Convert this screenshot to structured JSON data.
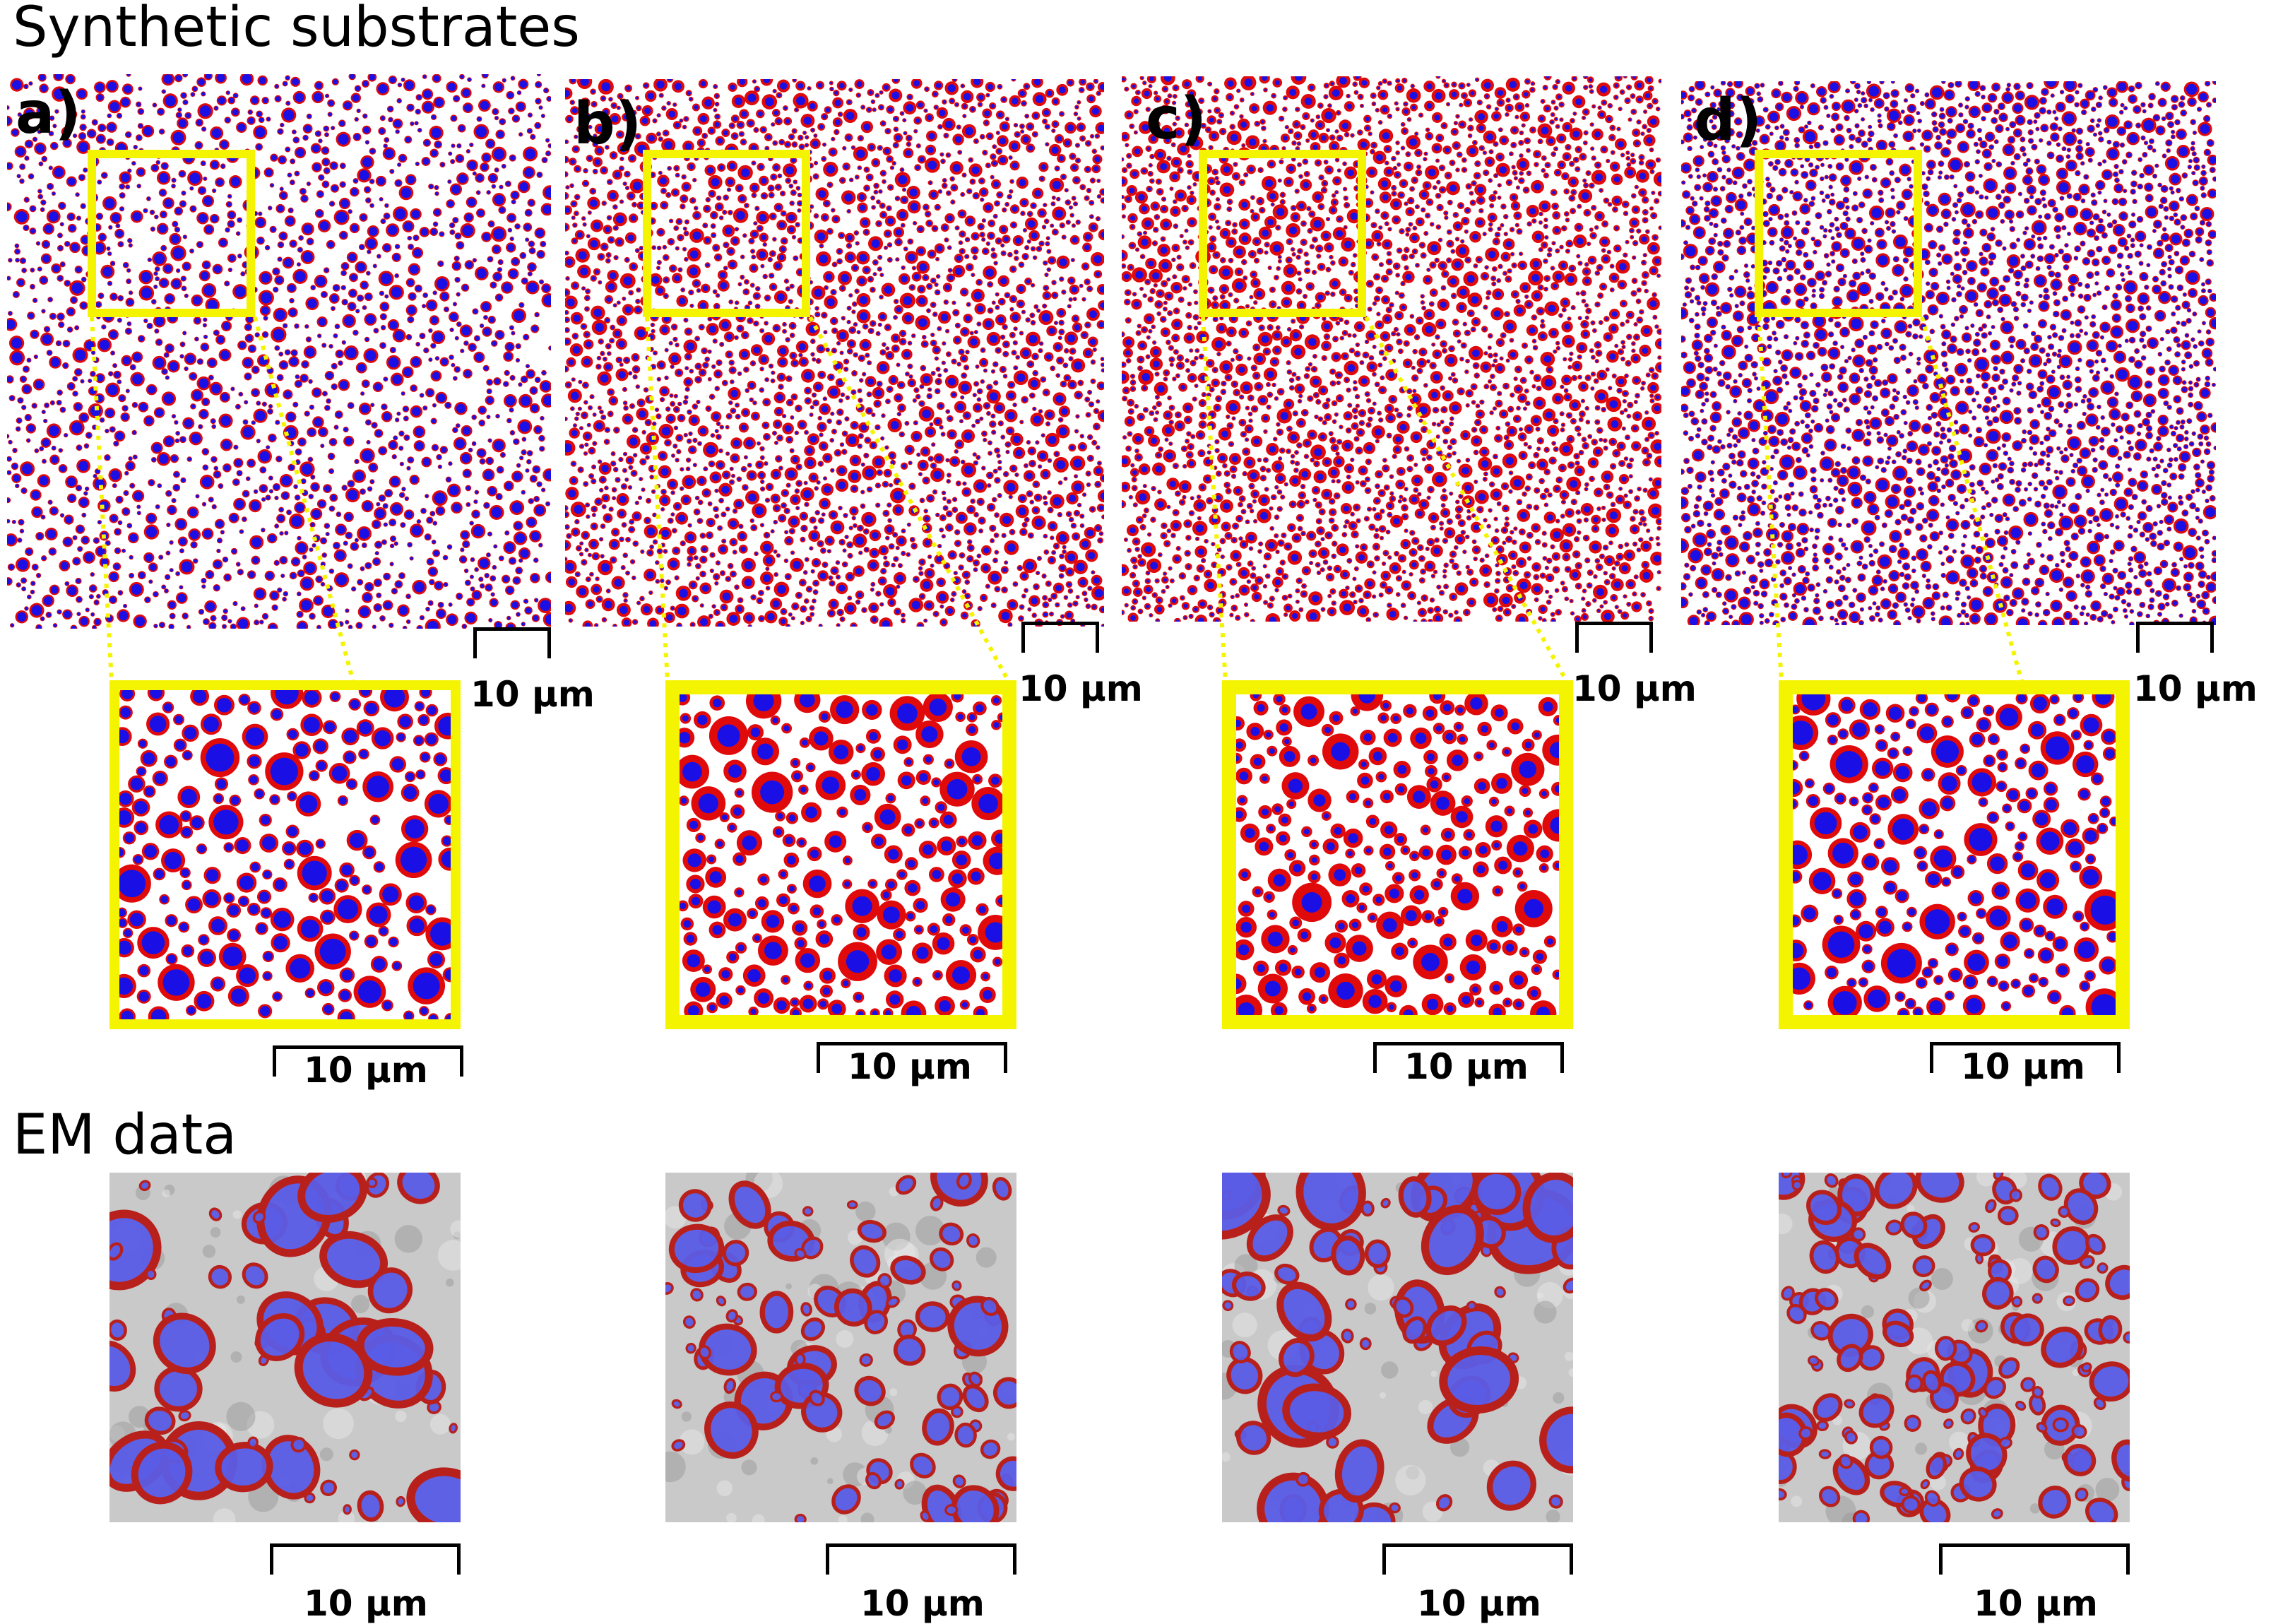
{
  "sections": {
    "synthetic_title": "Synthetic substrates",
    "em_title": "EM data"
  },
  "panels": [
    {
      "letter": "a)",
      "scale_main": "10 µm",
      "scale_inset": "10 µm",
      "scale_em": "10 µm",
      "style": "sparse"
    },
    {
      "letter": "b)",
      "scale_main": "10 µm",
      "scale_inset": "10 µm",
      "scale_em": "10 µm",
      "style": "red"
    },
    {
      "letter": "c)",
      "scale_main": "10 µm",
      "scale_inset": "10 µm",
      "scale_em": "10 µm",
      "style": "reddest"
    },
    {
      "letter": "d)",
      "scale_main": "10 µm",
      "scale_inset": "10 µm",
      "scale_em": "10 µm",
      "style": "dense"
    }
  ],
  "colors": {
    "axon": "#1a10e6",
    "myelin": "#e00a0a",
    "highlight": "#f4f400",
    "em_axon": "#5a5ce6",
    "em_myelin": "#b8201c",
    "em_bg": "#c9c9c9"
  }
}
